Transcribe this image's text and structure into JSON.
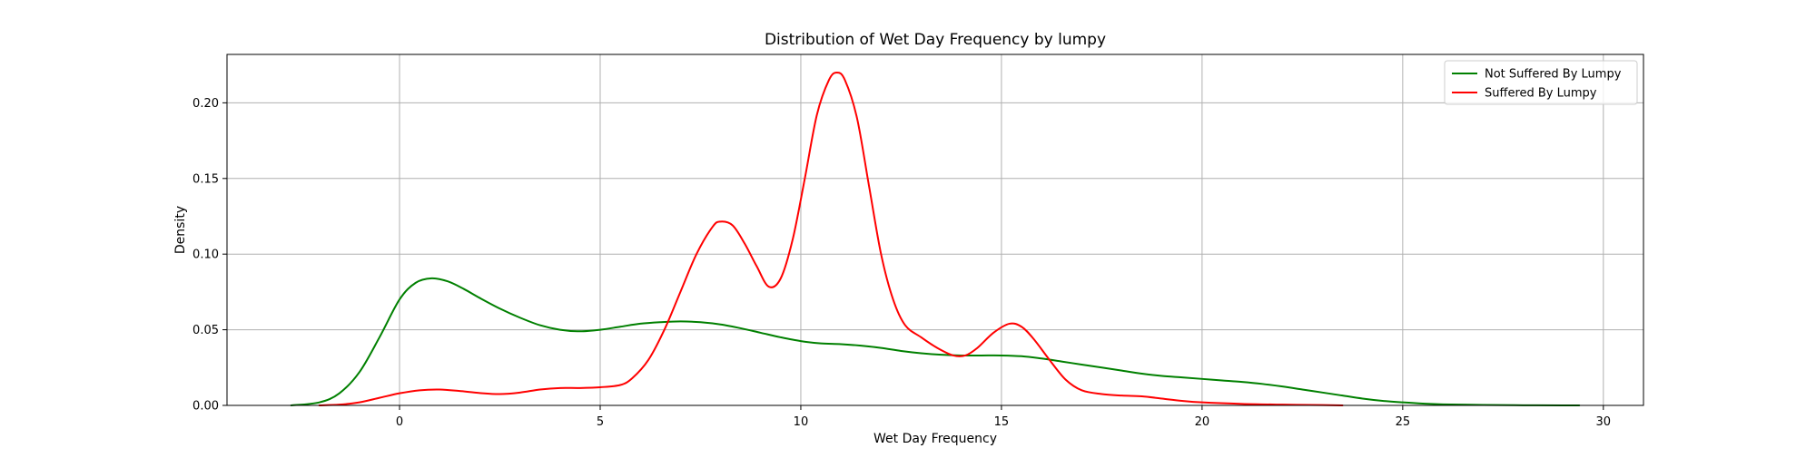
{
  "chart_data": {
    "type": "line",
    "title": "Distribution of Wet Day Frequency by lumpy",
    "xlabel": "Wet Day Frequency",
    "ylabel": "Density",
    "xlim": [
      -4.3,
      31.0
    ],
    "ylim": [
      0,
      0.232
    ],
    "xticks": [
      0,
      5,
      10,
      15,
      20,
      25,
      30
    ],
    "xtick_labels": [
      "0",
      "5",
      "10",
      "15",
      "20",
      "25",
      "30"
    ],
    "yticks": [
      0.0,
      0.05,
      0.1,
      0.15,
      0.2
    ],
    "ytick_labels": [
      "0.00",
      "0.05",
      "0.10",
      "0.15",
      "0.20"
    ],
    "grid": true,
    "legend_position": "top-right",
    "series": [
      {
        "name": "Not Suffered By Lumpy",
        "color": "#008000",
        "points": [
          [
            -2.7,
            0.0
          ],
          [
            -2.0,
            0.002
          ],
          [
            -1.5,
            0.008
          ],
          [
            -1.0,
            0.022
          ],
          [
            -0.5,
            0.045
          ],
          [
            0.0,
            0.07
          ],
          [
            0.4,
            0.081
          ],
          [
            0.8,
            0.084
          ],
          [
            1.2,
            0.082
          ],
          [
            1.6,
            0.077
          ],
          [
            2.0,
            0.071
          ],
          [
            2.5,
            0.064
          ],
          [
            3.0,
            0.058
          ],
          [
            3.5,
            0.053
          ],
          [
            4.0,
            0.05
          ],
          [
            4.5,
            0.049
          ],
          [
            5.0,
            0.05
          ],
          [
            5.5,
            0.052
          ],
          [
            6.0,
            0.054
          ],
          [
            6.5,
            0.055
          ],
          [
            7.0,
            0.0555
          ],
          [
            7.5,
            0.055
          ],
          [
            8.0,
            0.0535
          ],
          [
            8.5,
            0.051
          ],
          [
            9.0,
            0.048
          ],
          [
            9.5,
            0.045
          ],
          [
            10.0,
            0.0425
          ],
          [
            10.5,
            0.041
          ],
          [
            11.0,
            0.0405
          ],
          [
            11.5,
            0.0395
          ],
          [
            12.0,
            0.038
          ],
          [
            12.5,
            0.036
          ],
          [
            13.0,
            0.0345
          ],
          [
            13.5,
            0.0335
          ],
          [
            14.0,
            0.033
          ],
          [
            14.5,
            0.033
          ],
          [
            15.0,
            0.033
          ],
          [
            15.5,
            0.0325
          ],
          [
            16.0,
            0.031
          ],
          [
            16.5,
            0.029
          ],
          [
            17.0,
            0.027
          ],
          [
            17.5,
            0.025
          ],
          [
            18.0,
            0.023
          ],
          [
            18.5,
            0.021
          ],
          [
            19.0,
            0.0195
          ],
          [
            19.5,
            0.0185
          ],
          [
            20.0,
            0.0175
          ],
          [
            20.5,
            0.0165
          ],
          [
            21.0,
            0.0155
          ],
          [
            21.5,
            0.0142
          ],
          [
            22.0,
            0.0125
          ],
          [
            22.5,
            0.0105
          ],
          [
            23.0,
            0.0085
          ],
          [
            23.5,
            0.0065
          ],
          [
            24.0,
            0.0045
          ],
          [
            24.5,
            0.003
          ],
          [
            25.0,
            0.002
          ],
          [
            25.5,
            0.0012
          ],
          [
            26.0,
            0.0007
          ],
          [
            27.0,
            0.0003
          ],
          [
            28.0,
            0.0001
          ],
          [
            29.0,
            0.0
          ],
          [
            29.4,
            0.0
          ]
        ]
      },
      {
        "name": "Suffered By Lumpy",
        "color": "#ff0000",
        "points": [
          [
            -2.0,
            0.0
          ],
          [
            -1.5,
            0.0005
          ],
          [
            -1.0,
            0.002
          ],
          [
            -0.5,
            0.005
          ],
          [
            0.0,
            0.008
          ],
          [
            0.5,
            0.01
          ],
          [
            1.0,
            0.0105
          ],
          [
            1.5,
            0.0095
          ],
          [
            2.0,
            0.0082
          ],
          [
            2.5,
            0.0075
          ],
          [
            3.0,
            0.0085
          ],
          [
            3.5,
            0.0105
          ],
          [
            4.0,
            0.0115
          ],
          [
            4.5,
            0.0115
          ],
          [
            5.0,
            0.012
          ],
          [
            5.5,
            0.0135
          ],
          [
            5.8,
            0.018
          ],
          [
            6.2,
            0.03
          ],
          [
            6.6,
            0.05
          ],
          [
            7.0,
            0.075
          ],
          [
            7.4,
            0.1
          ],
          [
            7.8,
            0.118
          ],
          [
            8.0,
            0.1215
          ],
          [
            8.3,
            0.119
          ],
          [
            8.6,
            0.107
          ],
          [
            8.9,
            0.092
          ],
          [
            9.2,
            0.0785
          ],
          [
            9.5,
            0.084
          ],
          [
            9.8,
            0.11
          ],
          [
            10.1,
            0.15
          ],
          [
            10.4,
            0.192
          ],
          [
            10.7,
            0.215
          ],
          [
            10.9,
            0.22
          ],
          [
            11.1,
            0.215
          ],
          [
            11.4,
            0.19
          ],
          [
            11.7,
            0.145
          ],
          [
            12.0,
            0.1
          ],
          [
            12.3,
            0.07
          ],
          [
            12.6,
            0.053
          ],
          [
            13.0,
            0.045
          ],
          [
            13.4,
            0.038
          ],
          [
            13.8,
            0.033
          ],
          [
            14.1,
            0.033
          ],
          [
            14.4,
            0.038
          ],
          [
            14.8,
            0.048
          ],
          [
            15.2,
            0.054
          ],
          [
            15.5,
            0.052
          ],
          [
            15.8,
            0.044
          ],
          [
            16.2,
            0.03
          ],
          [
            16.6,
            0.017
          ],
          [
            17.0,
            0.01
          ],
          [
            17.5,
            0.0075
          ],
          [
            18.0,
            0.0065
          ],
          [
            18.5,
            0.006
          ],
          [
            19.0,
            0.0045
          ],
          [
            19.5,
            0.003
          ],
          [
            20.0,
            0.002
          ],
          [
            21.0,
            0.001
          ],
          [
            22.0,
            0.0005
          ],
          [
            23.0,
            0.0002
          ],
          [
            23.5,
            0.0
          ]
        ]
      }
    ]
  }
}
